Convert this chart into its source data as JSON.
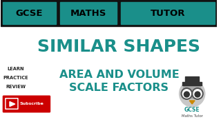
{
  "bg_color": "#ffffff",
  "header_bg": "#111111",
  "teal_color": "#1a8f8a",
  "header_text": [
    "GCSE",
    "MATHS",
    "TUTOR"
  ],
  "title_line1": "SIMILAR SHAPES",
  "subtitle_line1": "AREA AND VOLUME",
  "subtitle_line2": "SCALE FACTORS",
  "left_labels": [
    "LEARN",
    "PRACTICE",
    "REVIEW"
  ],
  "subscribe_bg": "#cc0000",
  "subscribe_text": "Subscribe",
  "gcse_logo_text1": "GCSE",
  "gcse_logo_text2": "Maths Tutor"
}
